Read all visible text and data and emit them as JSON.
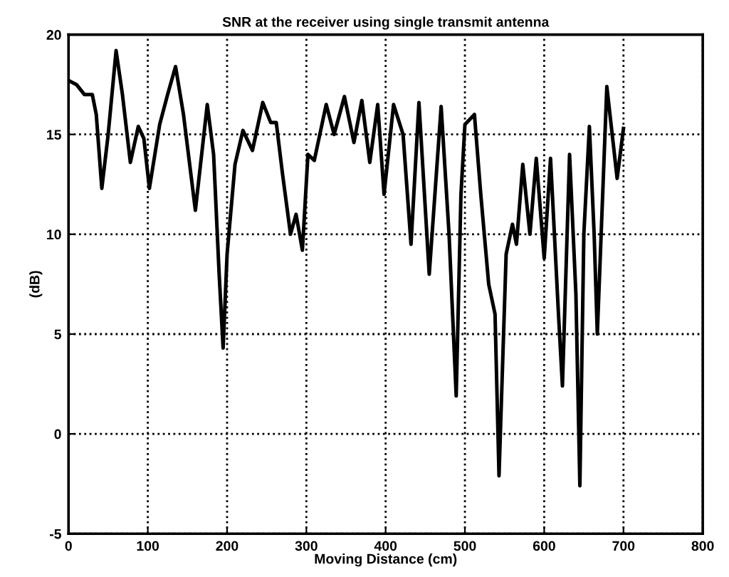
{
  "chart_data": {
    "type": "line",
    "title": "SNR at the receiver using single transmit antenna",
    "xlabel": "Moving Distance (cm)",
    "ylabel": "(dB)",
    "xlim": [
      0,
      800
    ],
    "ylim": [
      -5,
      20
    ],
    "xticks": [
      0,
      100,
      200,
      300,
      400,
      500,
      600,
      700,
      800
    ],
    "yticks": [
      -5,
      0,
      5,
      10,
      15,
      20
    ],
    "grid": true,
    "line_style": "solid",
    "marker": "none",
    "series": [
      {
        "color": "#000000",
        "x": [
          0,
          10,
          20,
          30,
          35,
          42,
          50,
          60,
          68,
          78,
          88,
          95,
          102,
          115,
          125,
          135,
          145,
          160,
          175,
          183,
          190,
          195,
          200,
          210,
          220,
          232,
          245,
          255,
          262,
          270,
          280,
          287,
          295,
          302,
          310,
          325,
          335,
          348,
          360,
          370,
          380,
          390,
          398,
          410,
          422,
          432,
          442,
          455,
          470,
          480,
          489,
          495,
          500,
          512,
          520,
          530,
          538,
          543,
          552,
          560,
          565,
          573,
          582,
          590,
          600,
          608,
          618,
          623,
          632,
          640,
          645,
          650,
          657,
          663,
          667,
          679,
          692,
          700
        ],
        "values": [
          17.7,
          17.5,
          17.0,
          17.0,
          16.0,
          12.3,
          15.0,
          19.2,
          17.0,
          13.6,
          15.4,
          14.8,
          12.3,
          15.5,
          17.0,
          18.4,
          16.0,
          11.2,
          16.5,
          14.0,
          8.0,
          4.3,
          9.0,
          13.5,
          15.2,
          14.2,
          16.6,
          15.6,
          15.6,
          13.0,
          10.0,
          11.0,
          9.2,
          14.0,
          13.7,
          16.5,
          15.0,
          16.9,
          14.6,
          16.7,
          13.6,
          16.5,
          12.0,
          16.5,
          15.0,
          9.5,
          16.6,
          8.0,
          16.4,
          10.0,
          1.9,
          12.0,
          15.5,
          16.0,
          12.0,
          7.5,
          6.0,
          -2.1,
          9.0,
          10.5,
          9.5,
          13.5,
          10.0,
          13.8,
          8.8,
          13.8,
          6.0,
          2.4,
          14.0,
          7.0,
          -2.6,
          10.0,
          15.4,
          10.0,
          5.0,
          17.4,
          12.8,
          15.3
        ]
      }
    ]
  }
}
